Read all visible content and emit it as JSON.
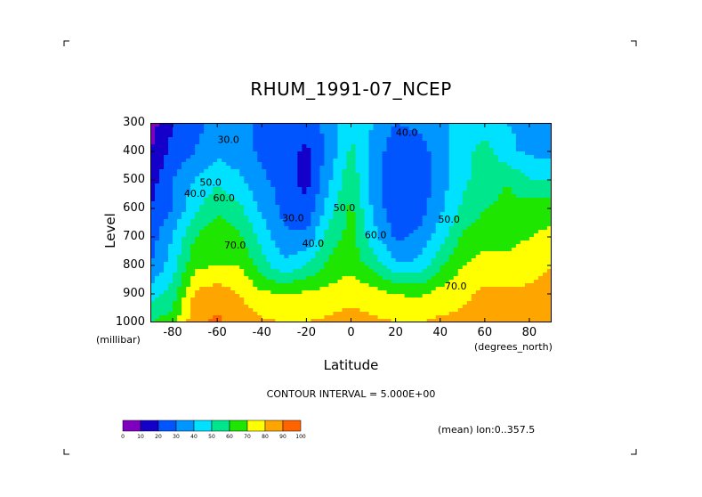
{
  "chart_data": {
    "type": "heatmap",
    "title": "RHUM_1991-07_NCEP",
    "xlabel": "Latitude",
    "xlabel_unit": "(degrees_north)",
    "ylabel": "Level",
    "ylabel_unit": "(millibar)",
    "contour_interval_text": "CONTOUR INTERVAL = 5.000E+00",
    "subtitle": "(mean) lon:0..357.5",
    "xlim": [
      -90,
      90
    ],
    "ylim": [
      1000,
      300
    ],
    "x_ticks": [
      "-80",
      "-60",
      "-40",
      "-20",
      "0",
      "20",
      "40",
      "60",
      "80"
    ],
    "y_ticks": [
      "300",
      "400",
      "500",
      "600",
      "700",
      "800",
      "900",
      "1000"
    ],
    "x": [
      -90,
      -80,
      -70,
      -60,
      -50,
      -40,
      -30,
      -20,
      -10,
      0,
      10,
      20,
      30,
      40,
      50,
      60,
      70,
      80,
      90
    ],
    "y": [
      300,
      400,
      500,
      600,
      700,
      800,
      900,
      1000
    ],
    "z": [
      [
        5,
        20,
        27,
        33,
        33,
        28,
        26,
        24,
        34,
        50,
        40,
        30,
        32,
        38,
        42,
        45,
        40,
        38,
        36
      ],
      [
        10,
        23,
        30,
        37,
        34,
        28,
        24,
        18,
        33,
        52,
        36,
        24,
        25,
        35,
        45,
        55,
        42,
        38,
        36
      ],
      [
        15,
        30,
        40,
        48,
        42,
        32,
        26,
        16,
        38,
        58,
        35,
        22,
        22,
        35,
        48,
        55,
        60,
        50,
        50
      ],
      [
        20,
        30,
        48,
        58,
        52,
        38,
        27,
        22,
        45,
        62,
        38,
        22,
        24,
        38,
        52,
        60,
        62,
        65,
        67
      ],
      [
        25,
        40,
        60,
        67,
        62,
        46,
        32,
        32,
        55,
        64,
        44,
        28,
        32,
        45,
        62,
        66,
        66,
        70,
        72
      ],
      [
        30,
        45,
        68,
        70,
        70,
        55,
        42,
        50,
        62,
        66,
        56,
        42,
        42,
        58,
        70,
        74,
        74,
        76,
        80
      ],
      [
        45,
        55,
        82,
        86,
        80,
        72,
        70,
        72,
        74,
        78,
        74,
        70,
        68,
        74,
        78,
        82,
        82,
        82,
        86
      ],
      [
        60,
        65,
        88,
        92,
        86,
        82,
        80,
        80,
        82,
        83,
        82,
        80,
        80,
        82,
        82,
        84,
        84,
        86,
        90
      ]
    ],
    "colorbar": {
      "levels": [
        0,
        10,
        20,
        30,
        40,
        50,
        60,
        70,
        80,
        90,
        100
      ],
      "tick_labels": [
        "0",
        "10",
        "20",
        "30",
        "40",
        "50",
        "60",
        "70",
        "80",
        "90",
        "100"
      ],
      "colors": [
        "#7f00bf",
        "#1400c8",
        "#0055ff",
        "#0096ff",
        "#00e1ff",
        "#00e68c",
        "#1ee600",
        "#ffff00",
        "#ffa500",
        "#ff6400",
        "#ff0000"
      ]
    },
    "contour_labels": [
      {
        "text": "30.0",
        "lon": -55,
        "p": 370
      },
      {
        "text": "40.0",
        "lon": -70,
        "p": 560
      },
      {
        "text": "50.0",
        "lon": -63,
        "p": 520
      },
      {
        "text": "60.0",
        "lon": -57,
        "p": 575
      },
      {
        "text": "70.0",
        "lon": -52,
        "p": 740
      },
      {
        "text": "30.0",
        "lon": -26,
        "p": 645
      },
      {
        "text": "40.0",
        "lon": -17,
        "p": 735
      },
      {
        "text": "50.0",
        "lon": -3,
        "p": 610
      },
      {
        "text": "60.0",
        "lon": 11,
        "p": 705
      },
      {
        "text": "40.0",
        "lon": 25,
        "p": 345
      },
      {
        "text": "50.0",
        "lon": 44,
        "p": 650
      },
      {
        "text": "70.0",
        "lon": 47,
        "p": 885
      }
    ],
    "grid": false,
    "legend_placement": "bottom-left colorbar"
  }
}
